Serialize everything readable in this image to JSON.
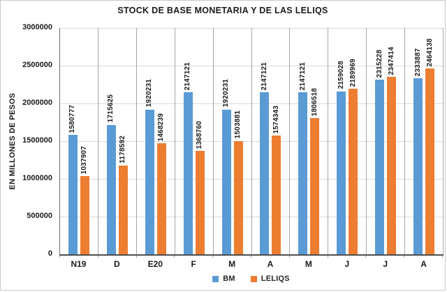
{
  "chart_data": {
    "type": "bar",
    "title": "STOCK DE BASE MONETARIA Y DE LAS LELIQS",
    "xlabel": "",
    "ylabel": "EN MILLONES DE PESOS",
    "ylim": [
      0,
      3000000
    ],
    "ytick_interval": 500000,
    "yticks": [
      "3000000",
      "2500000",
      "2000000",
      "1500000",
      "1000000",
      "500000",
      "0"
    ],
    "grid": true,
    "legend_position": "bottom",
    "data_labels_rotated_vertical": true,
    "categories": [
      "N19",
      "D",
      "E20",
      "F",
      "M",
      "A",
      "M",
      "J",
      "J",
      "A"
    ],
    "series": [
      {
        "name": "BM",
        "color": "#5B9BD5",
        "values": [
          1580777,
          1715625,
          1920231,
          2147121,
          1920231,
          2147121,
          2147121,
          2159028,
          2315228,
          2333887
        ]
      },
      {
        "name": "LELIQS",
        "color": "#ED7D31",
        "values": [
          1037907,
          1178592,
          1468239,
          1368760,
          1503881,
          1574343,
          1806518,
          2189969,
          2347414,
          2464138
        ]
      }
    ]
  },
  "colors": {
    "gridline": "#d9d9d9",
    "category_separator": "#a6a6a6",
    "axis_line": "#4f4f4f",
    "text": "#1a1a1a",
    "frame_border": "#c9c9c9"
  }
}
